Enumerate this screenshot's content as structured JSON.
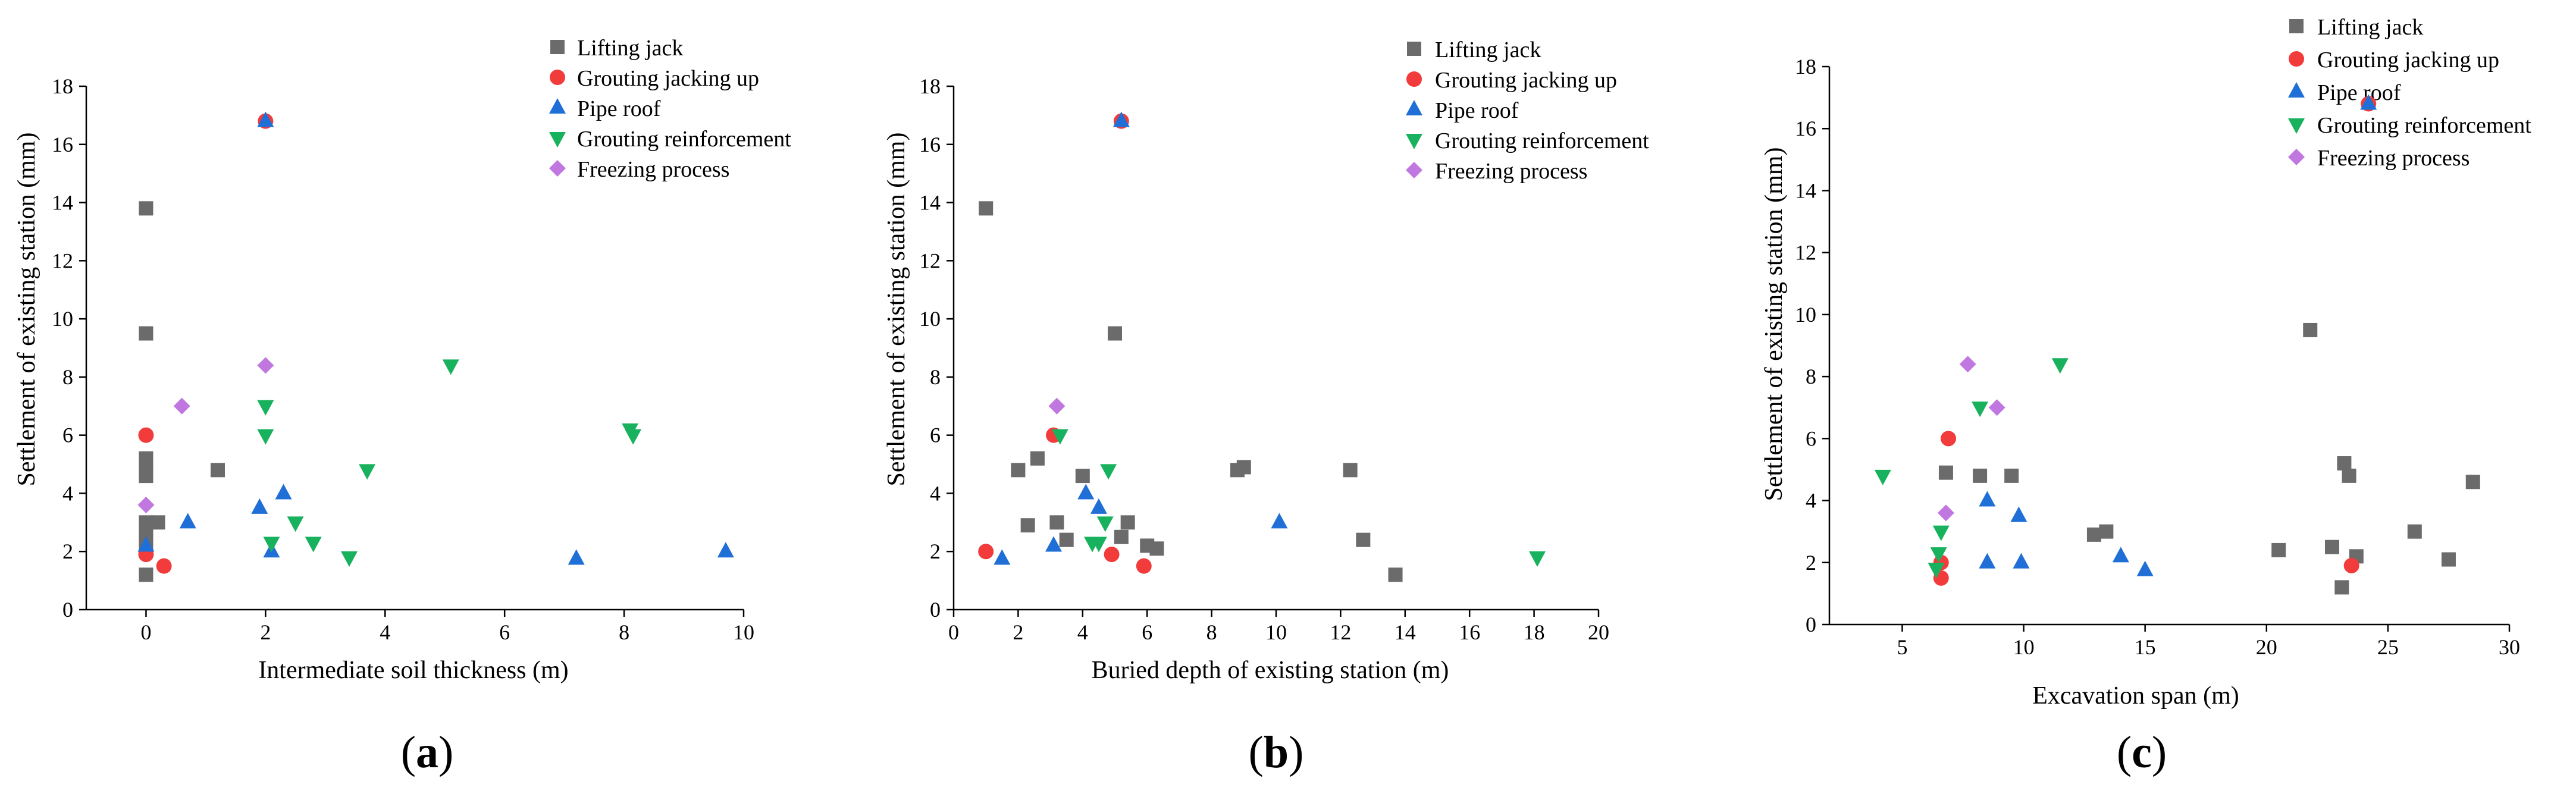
{
  "series_styles": [
    {
      "name": "Lifting jack",
      "color": "#6b6b6b",
      "marker": "square"
    },
    {
      "name": "Grouting jacking up",
      "color": "#f23b3b",
      "marker": "circle"
    },
    {
      "name": "Pipe roof",
      "color": "#1f6fd6",
      "marker": "triangle-up"
    },
    {
      "name": "Grouting reinforcement",
      "color": "#18b25e",
      "marker": "triangle-down"
    },
    {
      "name": "Freezing process",
      "color": "#c078e0",
      "marker": "diamond"
    }
  ],
  "chart_data": [
    {
      "id": "a",
      "type": "scatter",
      "panel_label": "a",
      "xlabel": "Intermediate soil thickness (m)",
      "ylabel": "Settlement of existing station (mm)",
      "xlim": [
        -1,
        10
      ],
      "ylim": [
        0,
        18
      ],
      "xticks": [
        0,
        2,
        4,
        6,
        8,
        10
      ],
      "yticks": [
        0,
        2,
        4,
        6,
        8,
        10,
        12,
        14,
        16,
        18
      ],
      "legend": [
        "Lifting jack",
        "Grouting jacking up",
        "Pipe roof",
        "Grouting reinforcement",
        "Freezing process"
      ],
      "series": [
        {
          "name": "Lifting jack",
          "points": [
            [
              0,
              13.8
            ],
            [
              0,
              9.5
            ],
            [
              0,
              5.2
            ],
            [
              0,
              4.9
            ],
            [
              0,
              4.8
            ],
            [
              0,
              4.6
            ],
            [
              0,
              3.0
            ],
            [
              0,
              2.9
            ],
            [
              0,
              2.5
            ],
            [
              0,
              2.4
            ],
            [
              0,
              2.1
            ],
            [
              0,
              1.2
            ],
            [
              0.2,
              3.0
            ],
            [
              1.2,
              4.8
            ]
          ]
        },
        {
          "name": "Grouting jacking up",
          "points": [
            [
              0,
              6.0
            ],
            [
              0,
              1.9
            ],
            [
              0.3,
              1.5
            ],
            [
              2.0,
              16.8
            ]
          ]
        },
        {
          "name": "Pipe roof",
          "points": [
            [
              0,
              2.2
            ],
            [
              0.7,
              3.0
            ],
            [
              1.9,
              3.5
            ],
            [
              2.0,
              16.8
            ],
            [
              2.1,
              2.0
            ],
            [
              2.3,
              4.0
            ],
            [
              7.2,
              1.75
            ],
            [
              9.7,
              2.0
            ]
          ]
        },
        {
          "name": "Grouting reinforcement",
          "points": [
            [
              2.0,
              7.0
            ],
            [
              2.0,
              6.0
            ],
            [
              2.1,
              2.3
            ],
            [
              2.5,
              3.0
            ],
            [
              2.8,
              2.3
            ],
            [
              3.4,
              1.8
            ],
            [
              3.7,
              4.8
            ],
            [
              5.1,
              8.4
            ],
            [
              8.1,
              6.2
            ],
            [
              8.15,
              6.0
            ]
          ]
        },
        {
          "name": "Freezing process",
          "points": [
            [
              0,
              3.6
            ],
            [
              0.6,
              7.0
            ],
            [
              2.0,
              8.4
            ]
          ]
        }
      ]
    },
    {
      "id": "b",
      "type": "scatter",
      "panel_label": "b",
      "xlabel": "Buried depth of existing station (m)",
      "ylabel": "Settlement of existing station (mm)",
      "xlim": [
        0,
        20
      ],
      "ylim": [
        0,
        18
      ],
      "xticks": [
        0,
        2,
        4,
        6,
        8,
        10,
        12,
        14,
        16,
        18,
        20
      ],
      "yticks": [
        0,
        2,
        4,
        6,
        8,
        10,
        12,
        14,
        16,
        18
      ],
      "legend": [
        "Lifting jack",
        "Grouting jacking up",
        "Pipe roof",
        "Grouting reinforcement",
        "Freezing process"
      ],
      "series": [
        {
          "name": "Lifting jack",
          "points": [
            [
              1.0,
              13.8
            ],
            [
              2.0,
              4.8
            ],
            [
              2.3,
              2.9
            ],
            [
              2.6,
              5.2
            ],
            [
              3.2,
              3.0
            ],
            [
              3.5,
              2.4
            ],
            [
              4.0,
              4.6
            ],
            [
              5.0,
              9.5
            ],
            [
              5.2,
              2.5
            ],
            [
              5.4,
              3.0
            ],
            [
              6.0,
              2.2
            ],
            [
              6.3,
              2.1
            ],
            [
              8.8,
              4.8
            ],
            [
              9.0,
              4.9
            ],
            [
              12.3,
              4.8
            ],
            [
              12.7,
              2.4
            ],
            [
              13.7,
              1.2
            ]
          ]
        },
        {
          "name": "Grouting jacking up",
          "points": [
            [
              1.0,
              2.0
            ],
            [
              3.1,
              6.0
            ],
            [
              4.9,
              1.9
            ],
            [
              5.2,
              16.8
            ],
            [
              5.9,
              1.5
            ]
          ]
        },
        {
          "name": "Pipe roof",
          "points": [
            [
              1.5,
              1.75
            ],
            [
              3.1,
              2.2
            ],
            [
              4.1,
              4.0
            ],
            [
              4.5,
              3.5
            ],
            [
              5.2,
              16.8
            ],
            [
              10.1,
              3.0
            ]
          ]
        },
        {
          "name": "Grouting reinforcement",
          "points": [
            [
              3.3,
              6.0
            ],
            [
              4.3,
              2.3
            ],
            [
              4.5,
              2.3
            ],
            [
              4.7,
              3.0
            ],
            [
              4.8,
              4.8
            ],
            [
              18.1,
              1.8
            ]
          ]
        },
        {
          "name": "Freezing process",
          "points": [
            [
              3.2,
              7.0
            ]
          ]
        }
      ]
    },
    {
      "id": "c",
      "type": "scatter",
      "panel_label": "c",
      "xlabel": "Excavation span (m)",
      "ylabel": "Settlement of existing station (mm)",
      "xlim": [
        2,
        30
      ],
      "ylim": [
        0,
        18
      ],
      "xticks": [
        5,
        10,
        15,
        20,
        25,
        30
      ],
      "yticks": [
        0,
        2,
        4,
        6,
        8,
        10,
        12,
        14,
        16,
        18
      ],
      "legend": [
        "Lifting jack",
        "Grouting jacking up",
        "Pipe roof",
        "Grouting reinforcement",
        "Freezing process"
      ],
      "series": [
        {
          "name": "Lifting jack",
          "points": [
            [
              6.8,
              4.9
            ],
            [
              8.2,
              4.8
            ],
            [
              9.5,
              4.8
            ],
            [
              12.9,
              2.9
            ],
            [
              13.4,
              3.0
            ],
            [
              20.5,
              2.4
            ],
            [
              21.8,
              9.5
            ],
            [
              22.7,
              2.5
            ],
            [
              23.1,
              1.2
            ],
            [
              23.2,
              5.2
            ],
            [
              23.4,
              4.8
            ],
            [
              23.7,
              2.2
            ],
            [
              26.1,
              3.0
            ],
            [
              27.5,
              2.1
            ],
            [
              28.5,
              4.6
            ]
          ]
        },
        {
          "name": "Grouting jacking up",
          "points": [
            [
              6.6,
              2.0
            ],
            [
              6.6,
              1.5
            ],
            [
              6.9,
              6.0
            ],
            [
              23.5,
              1.9
            ],
            [
              24.2,
              16.8
            ]
          ]
        },
        {
          "name": "Pipe roof",
          "points": [
            [
              8.5,
              4.0
            ],
            [
              8.5,
              2.0
            ],
            [
              9.8,
              3.5
            ],
            [
              9.9,
              2.0
            ],
            [
              14.0,
              2.2
            ],
            [
              15.0,
              1.75
            ],
            [
              24.2,
              16.8
            ]
          ]
        },
        {
          "name": "Grouting reinforcement",
          "points": [
            [
              4.2,
              4.8
            ],
            [
              6.4,
              1.8
            ],
            [
              6.5,
              2.3
            ],
            [
              6.6,
              3.0
            ],
            [
              8.2,
              7.0
            ],
            [
              11.5,
              8.4
            ]
          ]
        },
        {
          "name": "Freezing process",
          "points": [
            [
              6.8,
              3.6
            ],
            [
              7.7,
              8.4
            ],
            [
              8.9,
              7.0
            ]
          ]
        }
      ]
    }
  ]
}
